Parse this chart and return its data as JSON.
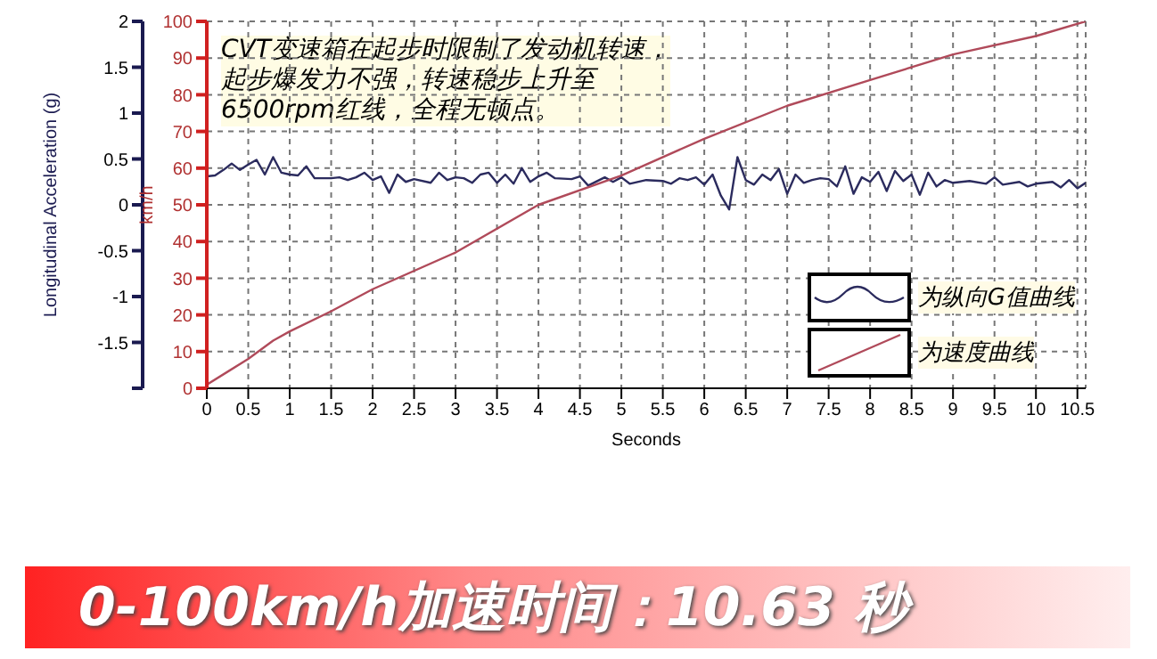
{
  "chart_data": {
    "type": "line",
    "title": "0-100km/h加速时间：10.63 秒",
    "xlabel": "Seconds",
    "ylabel": "Longitudinal Acceleration (g)",
    "y2label": "km/h",
    "annotations": [
      "CVT变速箱在起步时限制了发动机转速，起步爆发力不强，转速稳步上升至6500rpm红线，全程无顿点。"
    ],
    "xlim": [
      0,
      10.6
    ],
    "xticks": [
      0,
      0.5,
      1,
      1.5,
      2,
      2.5,
      3,
      3.5,
      4,
      4.5,
      5,
      5.5,
      6,
      6.5,
      7,
      7.5,
      8,
      8.5,
      9,
      9.5,
      10,
      10.5
    ],
    "ylim": [
      -2,
      2
    ],
    "yticks": [
      {
        "value": -2,
        "label": null
      },
      -1.5,
      -1,
      -0.5,
      0,
      0.5,
      1,
      1.5,
      2
    ],
    "y2lim": [
      0,
      100
    ],
    "y2ticks": [
      0,
      10,
      20,
      30,
      40,
      50,
      60,
      70,
      80,
      90,
      100
    ],
    "grid": true,
    "legend": "bottom right",
    "marker": "none",
    "line_style": "solid",
    "series": [
      {
        "name": "为纵向G值曲线",
        "color": "#2b2b5e",
        "axis": "y",
        "x": [
          0,
          0.1,
          0.2,
          0.3,
          0.4,
          0.5,
          0.6,
          0.7,
          0.8,
          0.9,
          1.0,
          1.1,
          1.2,
          1.3,
          1.5,
          1.6,
          1.7,
          1.8,
          1.9,
          2.0,
          2.1,
          2.2,
          2.3,
          2.4,
          2.5,
          2.7,
          2.8,
          2.9,
          3.0,
          3.1,
          3.2,
          3.3,
          3.4,
          3.5,
          3.6,
          3.7,
          3.8,
          3.9,
          4.0,
          4.1,
          4.2,
          4.4,
          4.5,
          4.6,
          4.8,
          4.9,
          5.0,
          5.1,
          5.3,
          5.5,
          5.6,
          5.7,
          5.8,
          5.9,
          6.0,
          6.1,
          6.2,
          6.3,
          6.4,
          6.5,
          6.6,
          6.7,
          6.8,
          6.9,
          7.0,
          7.1,
          7.2,
          7.3,
          7.4,
          7.5,
          7.6,
          7.7,
          7.8,
          7.9,
          8.0,
          8.1,
          8.2,
          8.3,
          8.4,
          8.5,
          8.6,
          8.7,
          8.8,
          8.9,
          9.0,
          9.2,
          9.4,
          9.5,
          9.6,
          9.8,
          9.9,
          10.0,
          10.2,
          10.3,
          10.4,
          10.5,
          10.6
        ],
        "values": [
          0.31,
          0.32,
          0.38,
          0.45,
          0.38,
          0.44,
          0.49,
          0.33,
          0.52,
          0.35,
          0.33,
          0.32,
          0.42,
          0.29,
          0.29,
          0.3,
          0.27,
          0.3,
          0.35,
          0.27,
          0.31,
          0.13,
          0.33,
          0.25,
          0.28,
          0.24,
          0.35,
          0.27,
          0.3,
          0.29,
          0.24,
          0.33,
          0.35,
          0.24,
          0.33,
          0.23,
          0.4,
          0.25,
          0.31,
          0.35,
          0.29,
          0.28,
          0.31,
          0.21,
          0.3,
          0.25,
          0.3,
          0.23,
          0.27,
          0.26,
          0.23,
          0.29,
          0.27,
          0.3,
          0.22,
          0.33,
          0.1,
          -0.05,
          0.52,
          0.27,
          0.22,
          0.33,
          0.27,
          0.39,
          0.12,
          0.33,
          0.24,
          0.27,
          0.29,
          0.28,
          0.2,
          0.42,
          0.12,
          0.3,
          0.25,
          0.36,
          0.15,
          0.37,
          0.26,
          0.33,
          0.11,
          0.35,
          0.2,
          0.27,
          0.24,
          0.26,
          0.23,
          0.3,
          0.22,
          0.25,
          0.2,
          0.23,
          0.25,
          0.19,
          0.27,
          0.18,
          0.24
        ]
      },
      {
        "name": "为速度曲线",
        "color": "#b04a5a",
        "axis": "y2",
        "x": [
          0,
          0.5,
          0.8,
          1,
          1.5,
          2,
          3,
          4,
          5,
          6,
          7,
          8,
          9,
          10,
          10.6
        ],
        "values": [
          1,
          8,
          13,
          15.5,
          21,
          27,
          37,
          50,
          58,
          68,
          77,
          84,
          91,
          96,
          100
        ]
      }
    ]
  }
}
